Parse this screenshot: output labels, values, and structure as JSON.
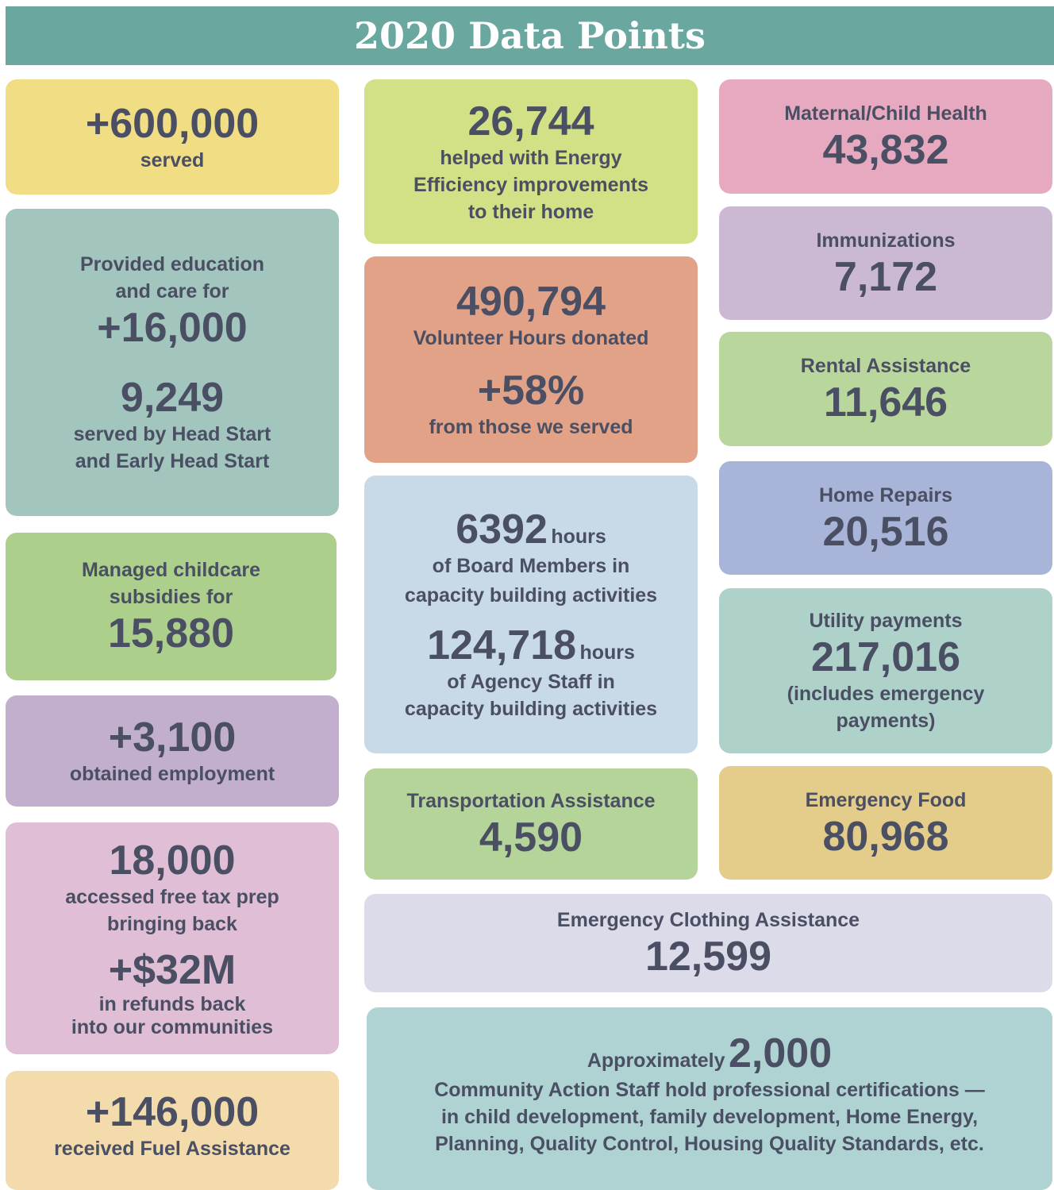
{
  "title": "2020 Data Points",
  "cards": [
    {
      "lines": [
        "+600,000",
        "served"
      ]
    },
    {
      "lines": [
        "Provided education",
        "and care for",
        "+16,000",
        "9,249",
        "served by Head Start",
        "and Early Head Start"
      ]
    },
    {
      "lines": [
        "Managed childcare",
        "subsidies for",
        "15,880"
      ]
    },
    {
      "lines": [
        "+3,100",
        "obtained employment"
      ]
    },
    {
      "lines": [
        "18,000",
        "accessed free tax prep",
        "bringing back",
        "+$32M",
        "in refunds back",
        "into our communities"
      ]
    },
    {
      "lines": [
        "+146,000",
        "received Fuel Assistance"
      ]
    },
    {
      "lines": [
        "26,744",
        "helped with Energy",
        "Efficiency improvements",
        "to their home"
      ]
    },
    {
      "lines": [
        "490,794",
        "Volunteer Hours donated",
        "+58%",
        "from those we served"
      ]
    },
    {
      "lines": [
        "6392",
        "hours",
        "of Board Members in",
        "capacity building activities",
        "124,718",
        "hours",
        "of Agency Staff in",
        "capacity building activities"
      ]
    },
    {
      "lines": [
        "Transportation Assistance",
        "4,590"
      ]
    },
    {
      "lines": [
        "Emergency Clothing Assistance",
        "12,599"
      ]
    },
    {
      "lines": [
        "Approximately",
        "2,000",
        "Community Action Staff hold professional  certifications —",
        "in child development, family development, Home Energy,",
        "Planning, Quality Control, Housing Quality Standards, etc."
      ]
    },
    {
      "lines": [
        "Maternal/Child Health",
        "43,832"
      ]
    },
    {
      "lines": [
        "Immunizations",
        "7,172"
      ]
    },
    {
      "lines": [
        "Rental Assistance",
        "11,646"
      ]
    },
    {
      "lines": [
        "Home Repairs",
        "20,516"
      ]
    },
    {
      "lines": [
        "Utility payments",
        "217,016",
        "(includes emergency",
        "payments)"
      ]
    },
    {
      "lines": [
        "Emergency Food",
        "80,968"
      ]
    }
  ]
}
